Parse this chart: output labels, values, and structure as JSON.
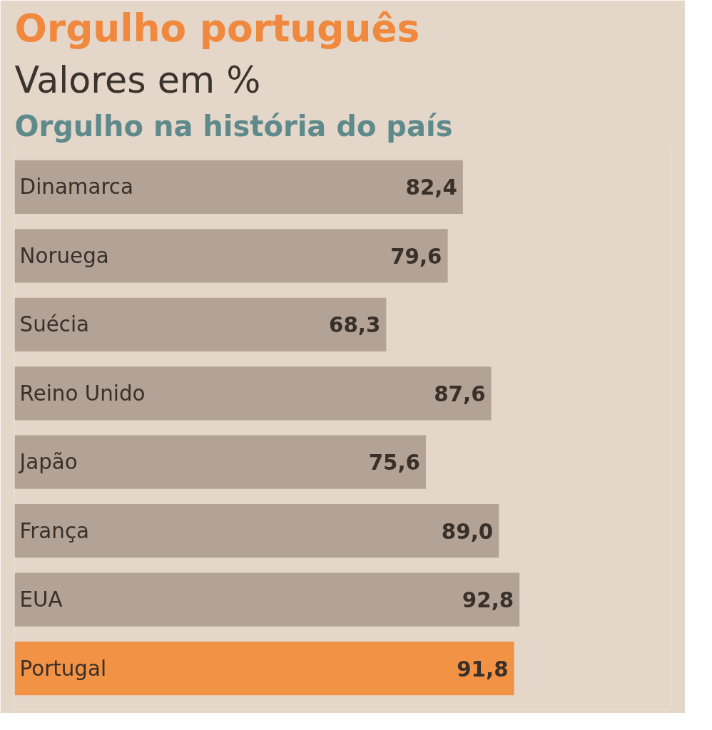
{
  "chart_data": {
    "type": "bar",
    "orientation": "horizontal",
    "title": "Orgulho português",
    "subtitle": "Valores em %",
    "annotations": [
      "Orgulho na história do país"
    ],
    "categories": [
      "Dinamarca",
      "Noruega",
      "Suécia",
      "Reino Unido",
      "Japão",
      "França",
      "EUA",
      "Portugal"
    ],
    "values": [
      82.4,
      79.6,
      68.3,
      87.6,
      75.6,
      89.0,
      92.8,
      91.8
    ],
    "value_labels": [
      "82,4",
      "79,6",
      "68,3",
      "87,6",
      "75,6",
      "89,0",
      "92,8",
      "91,8"
    ],
    "colors": [
      "#b2a396",
      "#b2a396",
      "#b2a396",
      "#b2a396",
      "#b2a396",
      "#b2a396",
      "#b2a396",
      "#f29244"
    ],
    "tick_labels": false,
    "grid": false
  }
}
